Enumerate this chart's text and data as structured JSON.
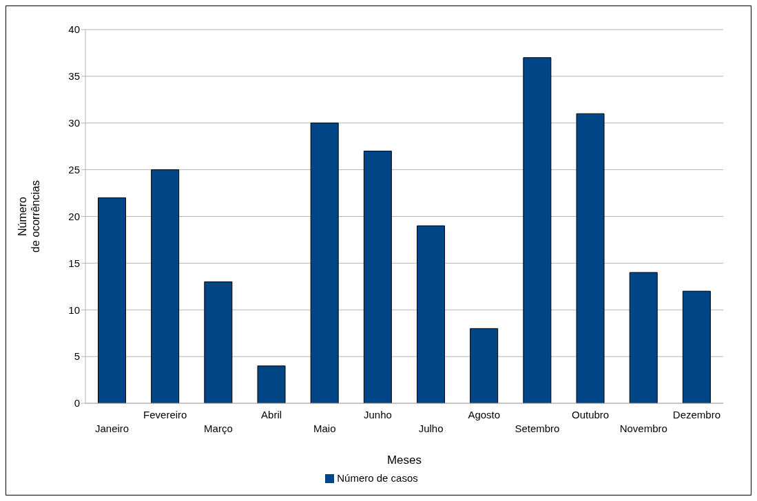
{
  "chart_data": {
    "type": "bar",
    "xlabel": "Meses",
    "ylabel": "Número\nde ocorrências",
    "categories": [
      "Janeiro",
      "Fevereiro",
      "Março",
      "Abril",
      "Maio",
      "Junho",
      "Julho",
      "Agosto",
      "Setembro",
      "Outubro",
      "Novembro",
      "Dezembro"
    ],
    "series": [
      {
        "name": "Número de casos",
        "color": "#004586",
        "values": [
          22,
          25,
          13,
          4,
          30,
          27,
          19,
          8,
          37,
          31,
          14,
          12
        ]
      }
    ],
    "ylim": [
      0,
      40
    ],
    "yticks": [
      0,
      5,
      10,
      15,
      20,
      25,
      30,
      35,
      40
    ],
    "grid": "y",
    "legend": "bottom"
  }
}
